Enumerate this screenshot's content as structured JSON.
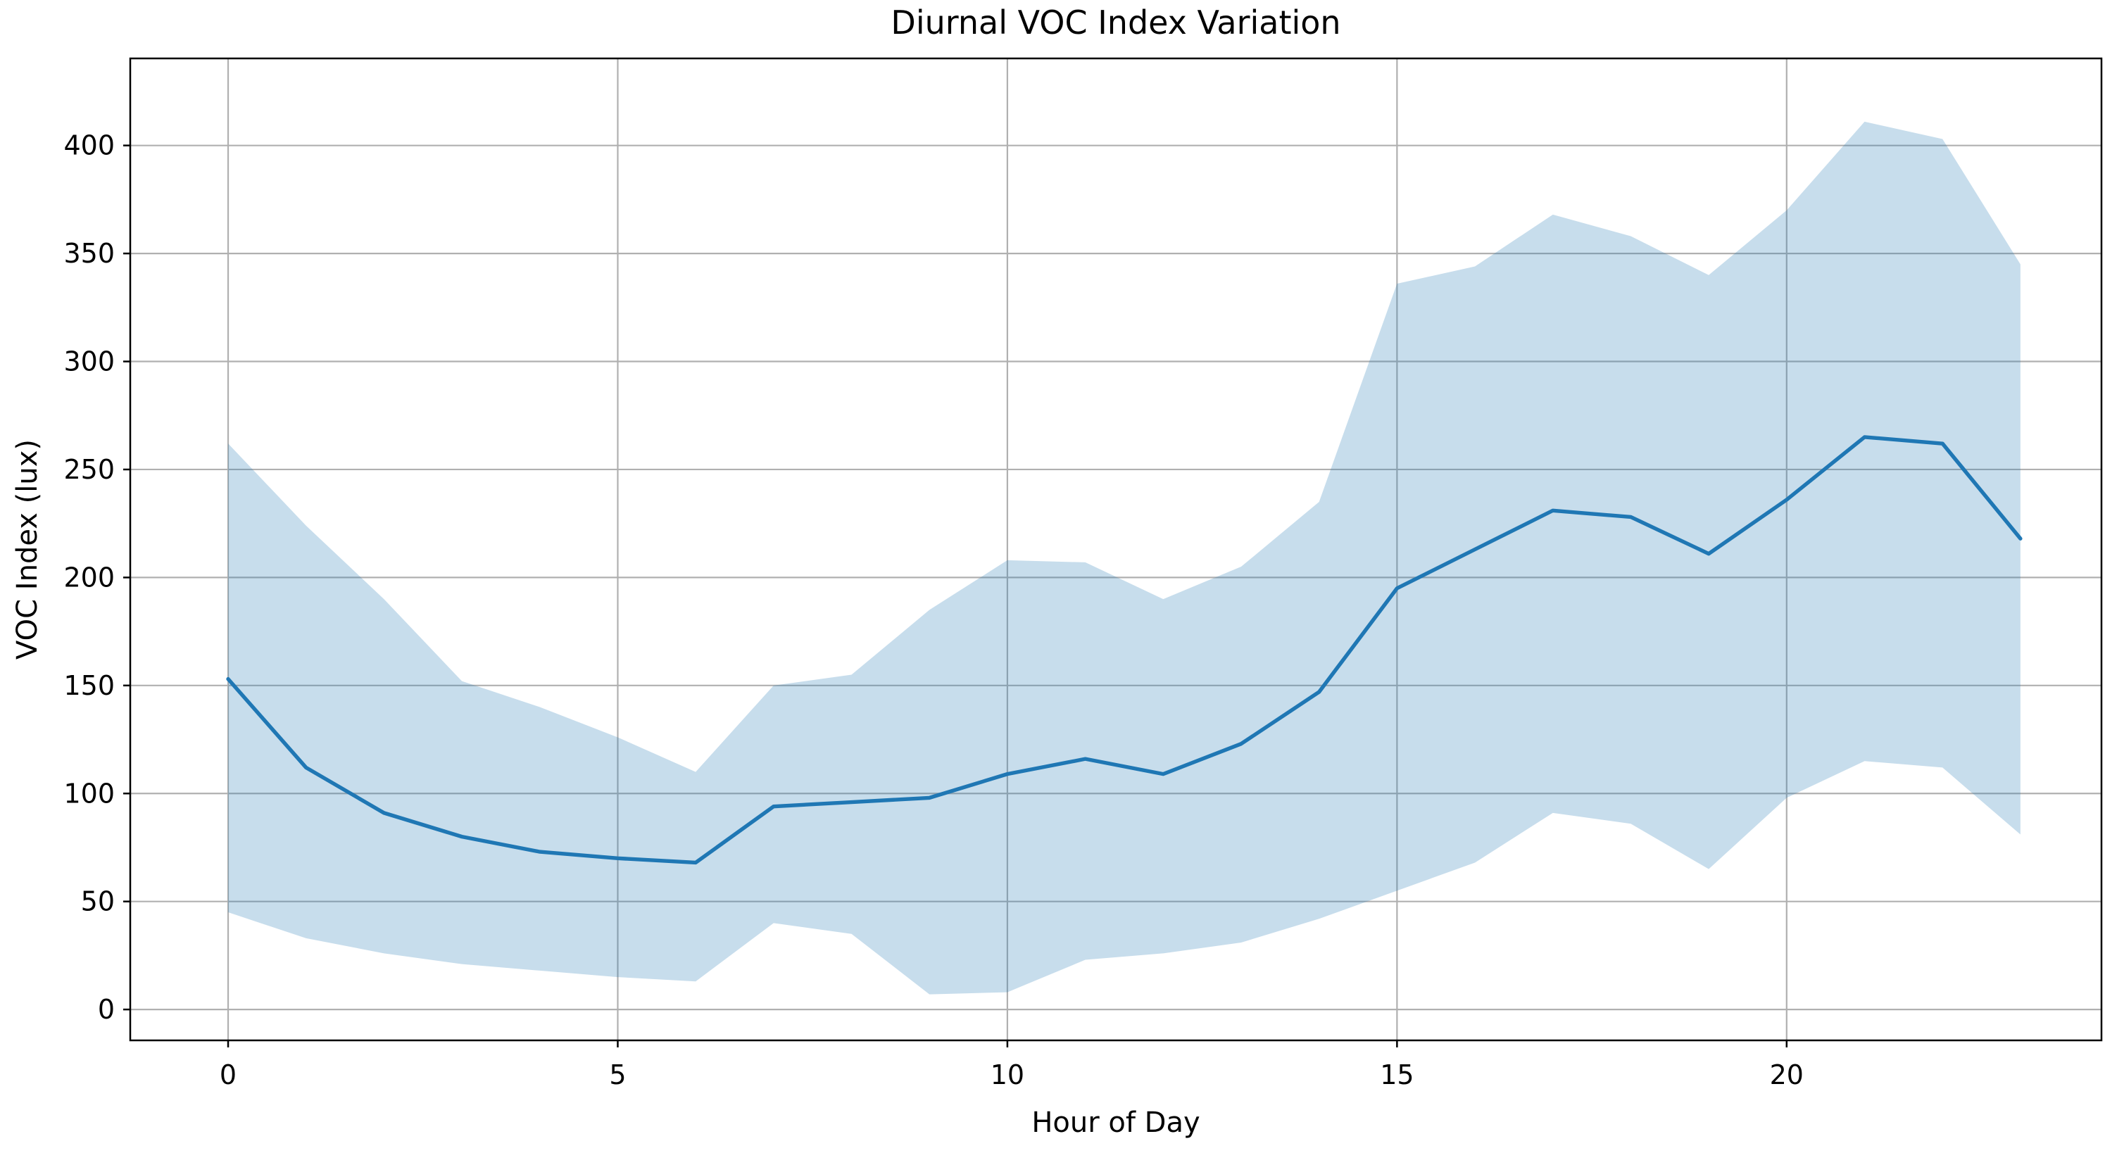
{
  "chart_data": {
    "type": "line",
    "title": "Diurnal VOC Index Variation",
    "xlabel": "Hour of Day",
    "ylabel": "VOC Index (lux)",
    "x": [
      0,
      1,
      2,
      3,
      4,
      5,
      6,
      7,
      8,
      9,
      10,
      11,
      12,
      13,
      14,
      15,
      16,
      17,
      18,
      19,
      20,
      21,
      22,
      23
    ],
    "series": [
      {
        "name": "mean_voc_index",
        "values": [
          153,
          112,
          91,
          80,
          73,
          70,
          68,
          94,
          96,
          98,
          109,
          116,
          109,
          123,
          147,
          195,
          213,
          231,
          228,
          211,
          236,
          265,
          262,
          218
        ]
      },
      {
        "name": "band_upper",
        "values": [
          262,
          224,
          190,
          152,
          140,
          126,
          110,
          150,
          155,
          185,
          208,
          207,
          190,
          205,
          235,
          336,
          344,
          368,
          358,
          340,
          370,
          411,
          403,
          345
        ]
      },
      {
        "name": "band_lower",
        "values": [
          45,
          33,
          26,
          21,
          18,
          15,
          13,
          40,
          35,
          7,
          8,
          23,
          26,
          31,
          42,
          55,
          68,
          91,
          86,
          65,
          98,
          115,
          112,
          81
        ]
      }
    ],
    "xticks": [
      0,
      5,
      10,
      15,
      20
    ],
    "yticks": [
      0,
      50,
      100,
      150,
      200,
      250,
      300,
      350,
      400
    ],
    "xlim": [
      -1.256,
      24.04
    ],
    "ylim": [
      -14.3,
      440.3
    ],
    "grid": true,
    "legend_position": "none",
    "colors": {
      "line": "#1f77b4",
      "band_fill": "rgba(31,119,180,0.25)",
      "grid": "#b0b0b0",
      "spine": "#000000",
      "background": "#ffffff",
      "text": "#000000"
    }
  }
}
